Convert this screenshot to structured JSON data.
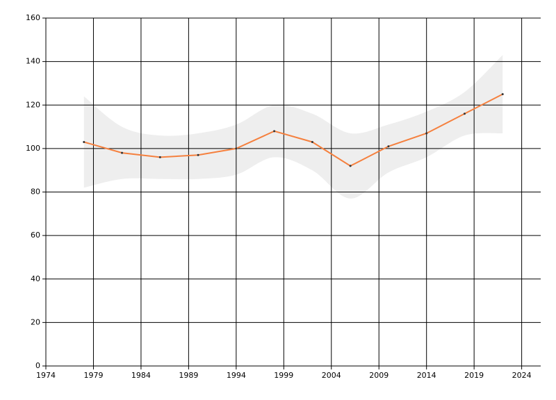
{
  "chart_data": {
    "type": "line",
    "x": [
      1978,
      1982,
      1986,
      1990,
      1994,
      1998,
      2002,
      2006,
      2010,
      2014,
      2018,
      2022
    ],
    "series": [
      {
        "color": "#f5803e",
        "values": [
          103,
          98,
          96,
          97,
          100,
          108,
          103,
          92,
          101,
          107,
          116,
          125
        ]
      }
    ],
    "band_upper": [
      124,
      110,
      106,
      107,
      111,
      120,
      116,
      107,
      111,
      117,
      126,
      143
    ],
    "band_lower": [
      82,
      86,
      86,
      86,
      88,
      96,
      90,
      77,
      89,
      96,
      106,
      107
    ],
    "band_color": "#eeeeee",
    "xlim": [
      1974,
      2026
    ],
    "xticks": [
      1974,
      1979,
      1984,
      1989,
      1994,
      1999,
      2004,
      2009,
      2014,
      2019,
      2024
    ],
    "ylim": [
      0,
      160
    ],
    "yticks": [
      0,
      20,
      40,
      60,
      80,
      100,
      120,
      140,
      160
    ],
    "grid": true
  }
}
